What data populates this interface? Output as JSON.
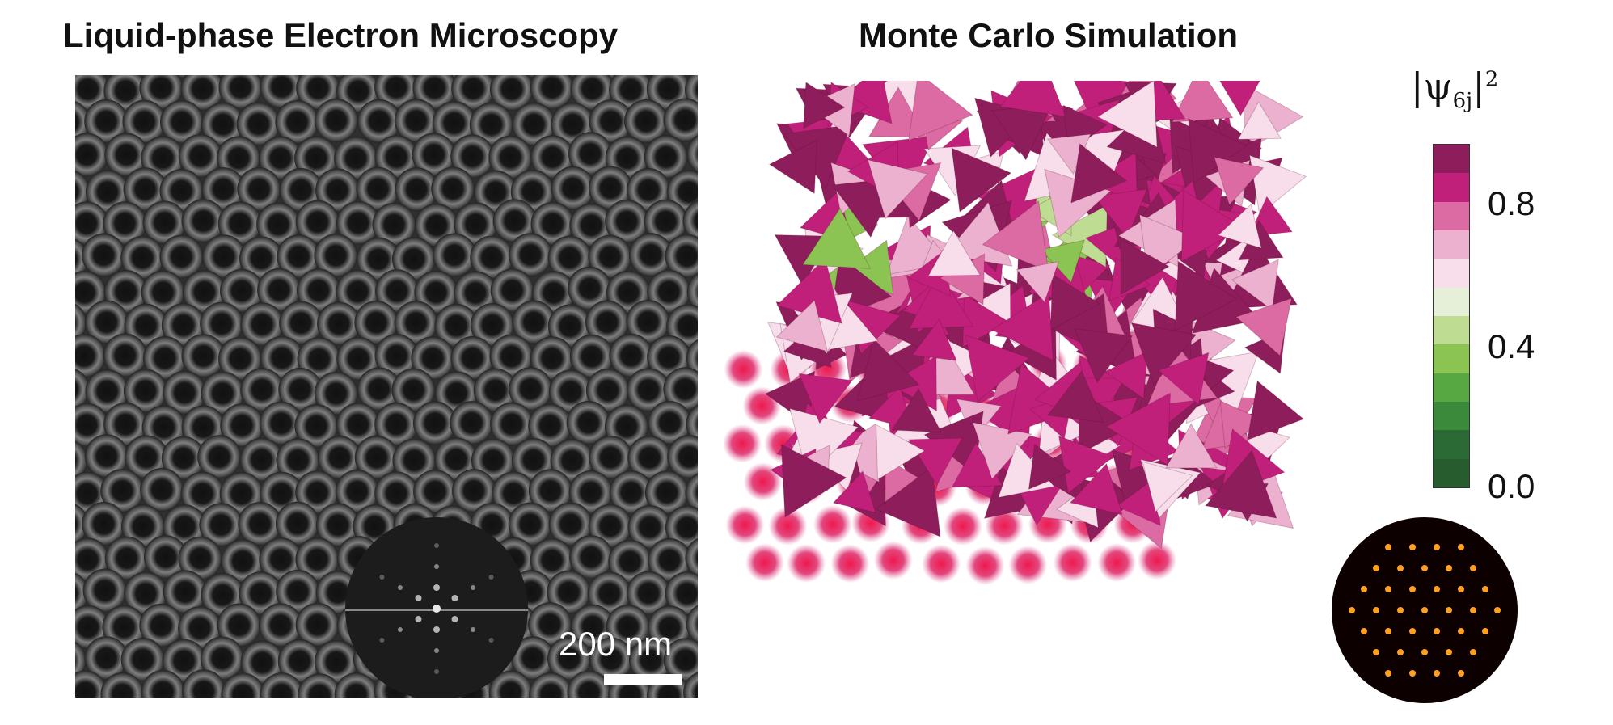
{
  "left_panel": {
    "title": "Liquid-phase Electron Microscopy",
    "scale_bar_label": "200 nm"
  },
  "right_panel": {
    "title": "Monte Carlo Simulation"
  },
  "colorbar": {
    "label_base": "|ψ",
    "label_sub": "6j",
    "label_close": "|",
    "label_sup": "2",
    "ticks": [
      "0.8",
      "0.4",
      "0.0"
    ],
    "colors": [
      "#8e1d5b",
      "#c1207a",
      "#dc6aa3",
      "#ebb1cf",
      "#f8deeb",
      "#e6efd8",
      "#bfdd92",
      "#8cc453",
      "#57a843",
      "#3b8a3b",
      "#2b6a34",
      "#275c2f"
    ]
  }
}
